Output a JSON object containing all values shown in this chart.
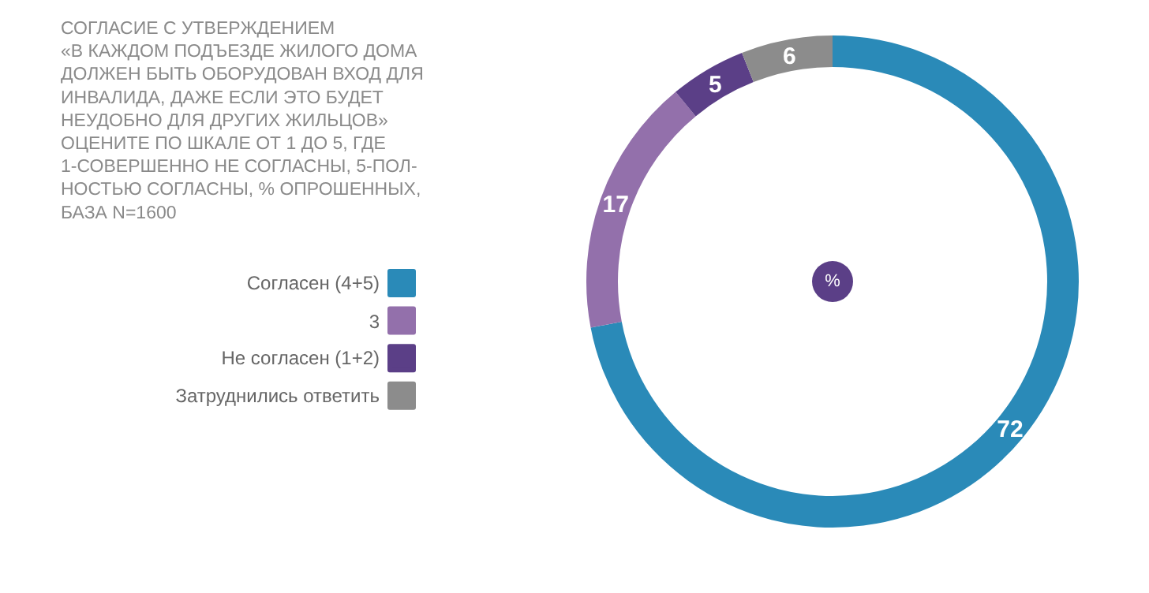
{
  "chart_data": {
    "type": "donut",
    "title": "СОГЛАСИЕ С УТВЕРЖДЕНИЕМ\n«В КАЖДОМ ПОДЪЕЗДЕ ЖИЛОГО ДОМА\nДОЛЖЕН БЫТЬ ОБОРУДОВАН ВХОД ДЛЯ\nИНВАЛИДА, ДАЖЕ ЕСЛИ ЭТО БУДЕТ\nНЕУДОБНО ДЛЯ ДРУГИХ ЖИЛЬЦОВ»",
    "subtitle": "ОЦЕНИТЕ ПО ШКАЛЕ ОТ 1 ДО 5, ГДЕ\n1-СОВЕРШЕННО НЕ СОГЛАСНЫ, 5-ПОЛ-\nНОСТЬЮ СОГЛАСНЫ, % ОПРОШЕННЫХ,\nБАЗА N=1600",
    "categories": [
      "Согласен (4+5)",
      "3",
      "Не согласен (1+2)",
      "Затруднились ответить"
    ],
    "values": [
      72,
      17,
      5,
      6
    ],
    "colors": [
      "#2a8ab8",
      "#9370ab",
      "#5b3f87",
      "#8c8c8c"
    ],
    "data_labels": true,
    "legend": "left",
    "annotations": [
      "%"
    ]
  }
}
